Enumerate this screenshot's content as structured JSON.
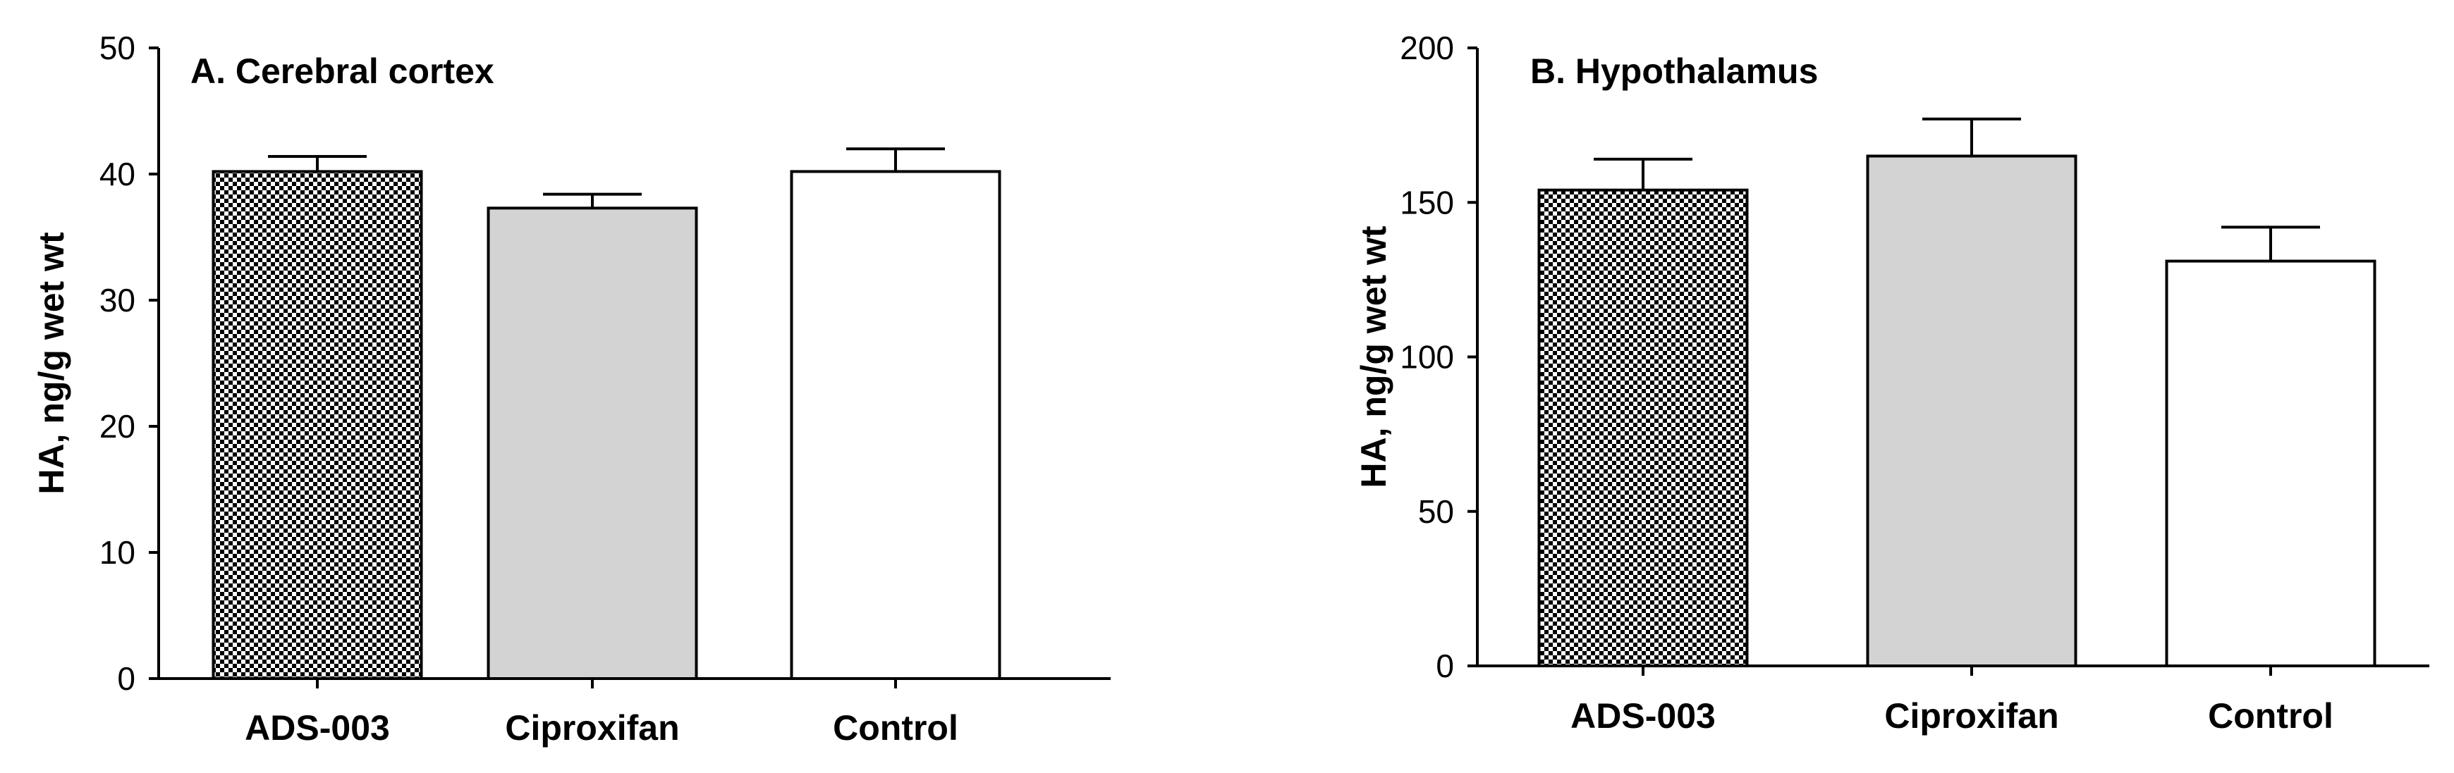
{
  "chart_data": [
    {
      "type": "bar",
      "title": "A. Cerebral cortex",
      "ylabel": "HA, ng/g wet wt",
      "xlabel": "",
      "categories": [
        "ADS-003",
        "Ciproxifan",
        "Control"
      ],
      "values": [
        40.2,
        37.3,
        40.2
      ],
      "errors": [
        1.2,
        1.1,
        1.8
      ],
      "ylim": [
        0,
        50
      ],
      "yticks": [
        0,
        10,
        20,
        30,
        40,
        50
      ],
      "fills": [
        "checker",
        "#d3d3d3",
        "#ffffff"
      ],
      "grid": false
    },
    {
      "type": "bar",
      "title": "B. Hypothalamus",
      "ylabel": "HA, ng/g wet wt",
      "xlabel": "",
      "categories": [
        "ADS-003",
        "Ciproxifan",
        "Control"
      ],
      "values": [
        154,
        165,
        131
      ],
      "errors": [
        10,
        12,
        11
      ],
      "ylim": [
        0,
        200
      ],
      "yticks": [
        0,
        50,
        100,
        150,
        200
      ],
      "fills": [
        "checker",
        "#d3d3d3",
        "#ffffff"
      ],
      "grid": false
    }
  ]
}
